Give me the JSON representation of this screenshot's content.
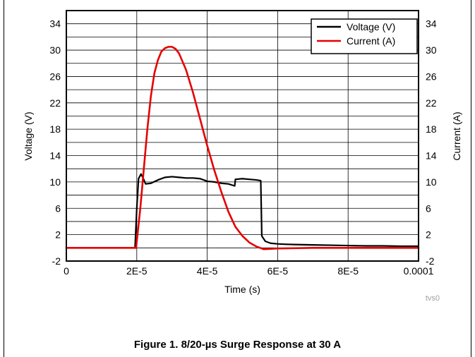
{
  "figure": {
    "caption": "Figure 1. 8/20-µs Surge Response at 30 A",
    "watermark": "tvs0"
  },
  "chart_data": {
    "type": "line",
    "xlabel": "Time (s)",
    "ylabel_left": "Voltage (V)",
    "ylabel_right": "Current (A)",
    "xlim": [
      0,
      0.0001
    ],
    "ylim": [
      -2,
      36
    ],
    "x_ticks": [
      0,
      2e-05,
      4e-05,
      6e-05,
      8e-05,
      0.0001
    ],
    "x_tick_labels": [
      "0",
      "2E-5",
      "4E-5",
      "6E-5",
      "8E-5",
      "0.0001"
    ],
    "y_ticks": [
      -2,
      2,
      6,
      10,
      14,
      18,
      22,
      26,
      30,
      34
    ],
    "y_tick_labels": [
      "-2",
      "2",
      "6",
      "10",
      "14",
      "18",
      "22",
      "26",
      "30",
      "34"
    ],
    "grid": true,
    "legend_position": "top-right",
    "series": [
      {
        "name": "Voltage (V)",
        "color": "#000000",
        "axis": "left",
        "x": [
          0,
          1.95e-05,
          2e-05,
          2.05e-05,
          2.12e-05,
          2.18e-05,
          2.25e-05,
          2.4e-05,
          2.6e-05,
          2.8e-05,
          3e-05,
          3.2e-05,
          3.4e-05,
          3.6e-05,
          3.8e-05,
          4e-05,
          4.2e-05,
          4.4e-05,
          4.6e-05,
          4.78e-05,
          4.8e-05,
          5e-05,
          5.2e-05,
          5.4e-05,
          5.52e-05,
          5.55e-05,
          5.65e-05,
          5.8e-05,
          6e-05,
          6.2e-05,
          6.5e-05,
          7e-05,
          7.5e-05,
          8e-05,
          8.5e-05,
          9e-05,
          9.5e-05,
          0.0001
        ],
        "y": [
          0,
          0,
          6,
          10.5,
          11.2,
          10.6,
          9.7,
          9.8,
          10.3,
          10.7,
          10.8,
          10.7,
          10.6,
          10.6,
          10.5,
          10.1,
          10.0,
          9.8,
          9.7,
          9.4,
          10.4,
          10.5,
          10.4,
          10.3,
          10.2,
          1.8,
          1.0,
          0.7,
          0.6,
          0.55,
          0.5,
          0.45,
          0.4,
          0.35,
          0.3,
          0.3,
          0.25,
          0.25
        ]
      },
      {
        "name": "Current (A)",
        "color": "#e60000",
        "axis": "right",
        "x": [
          0,
          1.98e-05,
          2e-05,
          2.1e-05,
          2.2e-05,
          2.3e-05,
          2.4e-05,
          2.5e-05,
          2.6e-05,
          2.7e-05,
          2.8e-05,
          2.9e-05,
          3e-05,
          3.1e-05,
          3.2e-05,
          3.4e-05,
          3.6e-05,
          3.8e-05,
          4e-05,
          4.2e-05,
          4.4e-05,
          4.6e-05,
          4.8e-05,
          5e-05,
          5.2e-05,
          5.4e-05,
          5.5e-05,
          5.6e-05,
          6e-05,
          7e-05,
          8e-05,
          9e-05,
          0.0001
        ],
        "y": [
          0,
          0,
          1,
          6,
          12,
          18,
          23,
          26.5,
          28.5,
          29.8,
          30.3,
          30.5,
          30.5,
          30.2,
          29.5,
          27,
          23.5,
          19.5,
          15.5,
          11.8,
          8.5,
          5.5,
          3.2,
          1.8,
          0.8,
          0.2,
          0,
          -0.2,
          -0.1,
          0,
          0,
          0,
          0
        ]
      }
    ]
  }
}
